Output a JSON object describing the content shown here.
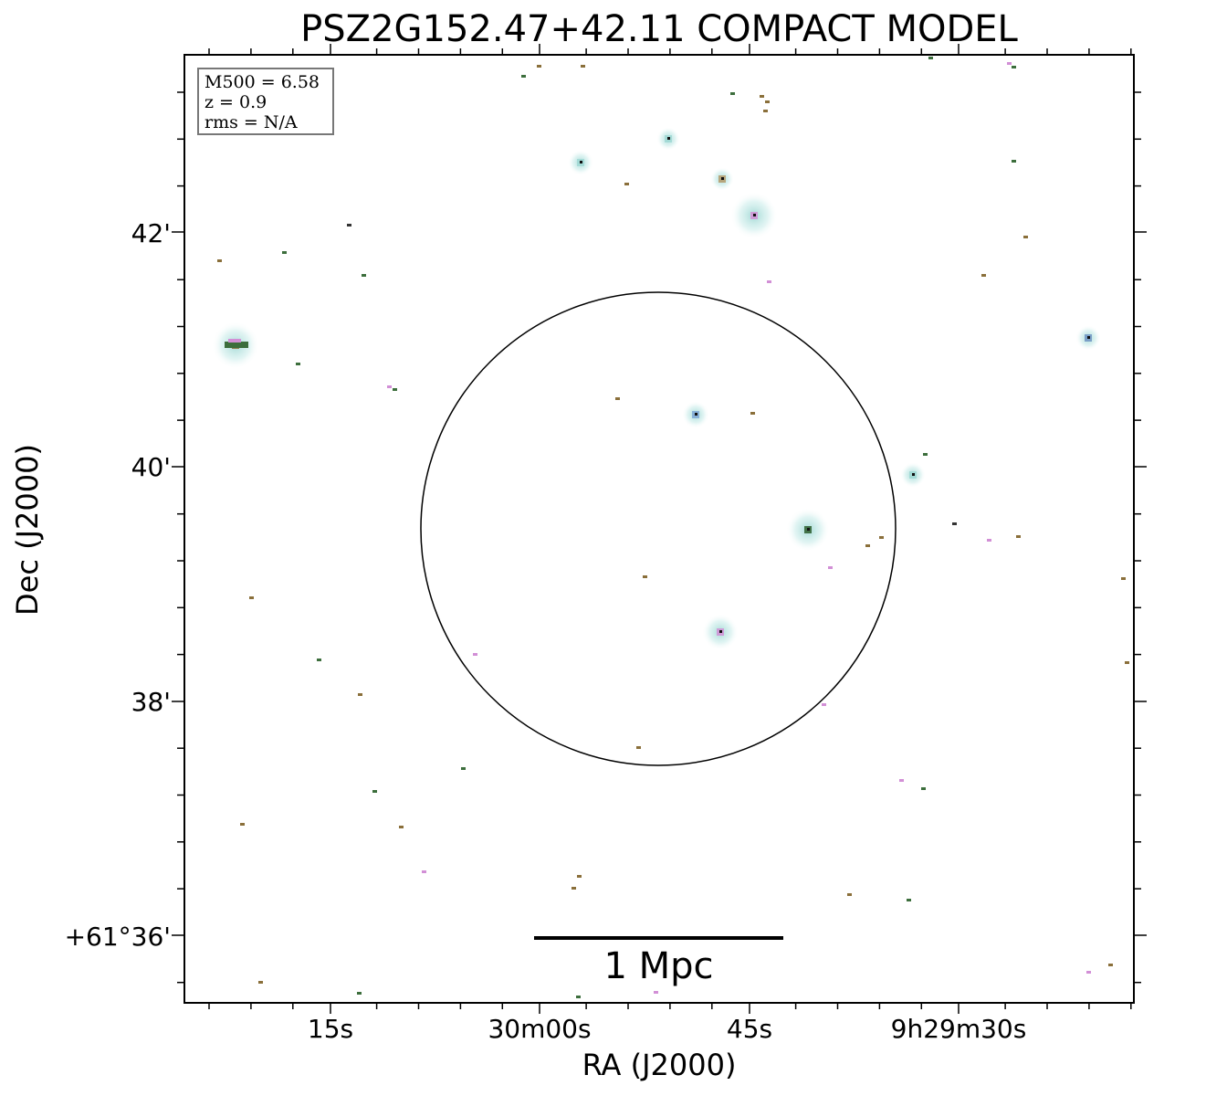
{
  "title": "PSZ2G152.47+42.11 COMPACT MODEL",
  "axes": {
    "xlabel": "RA (J2000)",
    "ylabel": "Dec (J2000)",
    "x_ticks": [
      "15s",
      "30m00s",
      "45s",
      "9h29m30s"
    ],
    "y_ticks": [
      "42'",
      "40'",
      "38'",
      "+61°36'"
    ]
  },
  "info_box": {
    "line1": "M500 = 6.58",
    "line2": "z = 0.9",
    "line3": "rms = N/A"
  },
  "scale_bar": {
    "label": "1 Mpc"
  },
  "colors": {
    "glow": "#bfe6e3",
    "magenta": "#d28fd6",
    "green": "#3c6e3c",
    "olive": "#8a6f3a",
    "frame": "#000000"
  }
}
